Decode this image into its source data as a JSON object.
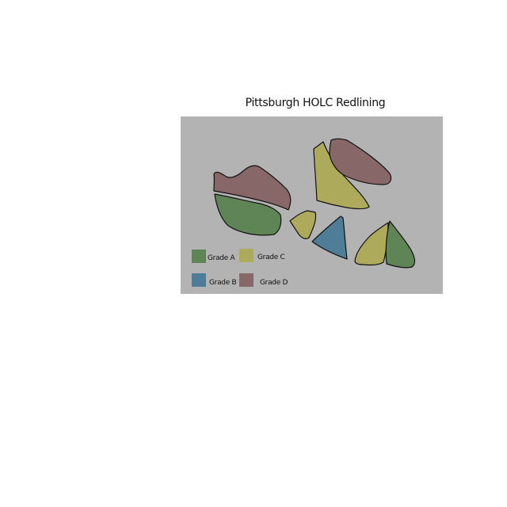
{
  "title": "Pittsburgh HOLC Redlining",
  "map_background": "#b3b3b3",
  "outline_color": "#111111",
  "grades": [
    {
      "key": "A",
      "label": "Grade A",
      "color": "#5f8456"
    },
    {
      "key": "B",
      "label": "Grade B",
      "color": "#4f7c96"
    },
    {
      "key": "C",
      "label": "Grade C",
      "color": "#aeaa5c"
    },
    {
      "key": "D",
      "label": "Grade D",
      "color": "#876768"
    }
  ],
  "zones": [
    {
      "id": "zone-d-west",
      "grade": "D"
    },
    {
      "id": "zone-a-west",
      "grade": "A"
    },
    {
      "id": "zone-c-north",
      "grade": "C"
    },
    {
      "id": "zone-d-north",
      "grade": "D"
    },
    {
      "id": "zone-c-small",
      "grade": "C"
    },
    {
      "id": "zone-b-central",
      "grade": "B"
    },
    {
      "id": "zone-c-east",
      "grade": "C"
    },
    {
      "id": "zone-a-east",
      "grade": "A"
    }
  ]
}
